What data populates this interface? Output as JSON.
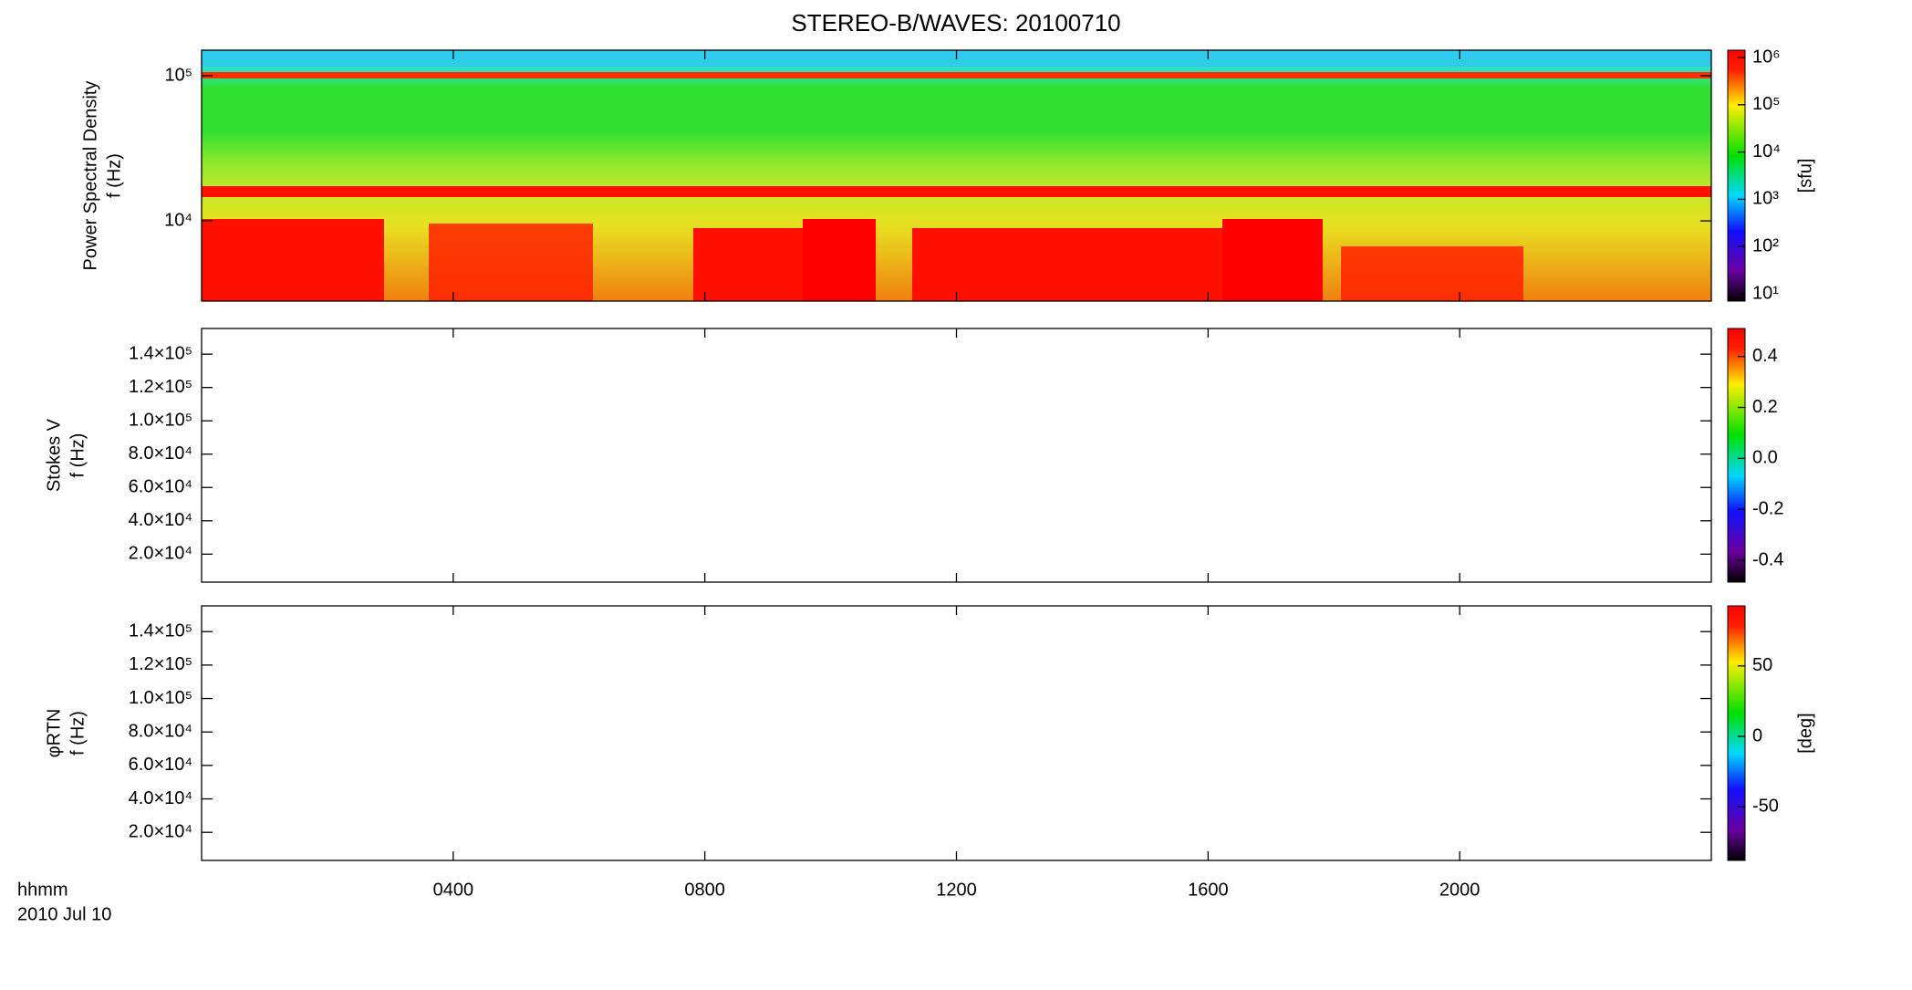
{
  "title": "STEREO-B/WAVES: 20100710",
  "x_axis": {
    "label": "hhmm",
    "date": "2010 Jul 10",
    "xlim": [
      0,
      24
    ],
    "xticks": [
      {
        "value": 4,
        "label": "0400"
      },
      {
        "value": 8,
        "label": "0800"
      },
      {
        "value": 12,
        "label": "1200"
      },
      {
        "value": 16,
        "label": "1600"
      },
      {
        "value": 20,
        "label": "2000"
      }
    ]
  },
  "chart_data": [
    {
      "type": "spectrogram",
      "ylabel": [
        "Power Spectral Density",
        "f (Hz)"
      ],
      "log_y": true,
      "ylim": [
        2800,
        150000
      ],
      "yticks": [
        {
          "value": 10000,
          "label": "10⁴"
        },
        {
          "value": 100000,
          "label": "10⁵"
        }
      ],
      "colorbar": {
        "label": "[sfu]",
        "log": true,
        "lim": [
          7,
          1430000
        ],
        "ticks": [
          {
            "value": 10,
            "label": "10¹"
          },
          {
            "value": 100,
            "label": "10²"
          },
          {
            "value": 1000,
            "label": "10³"
          },
          {
            "value": 10000,
            "label": "10⁴"
          },
          {
            "value": 100000,
            "label": "10⁵"
          },
          {
            "value": 1000000,
            "label": "10⁶"
          }
        ]
      }
    },
    {
      "type": "spectrogram",
      "ylabel": [
        "Stokes V",
        "f (Hz)"
      ],
      "log_y": false,
      "ylim": [
        3200,
        155400
      ],
      "yticks": [
        {
          "value": 20000,
          "label": "2.0×10⁴"
        },
        {
          "value": 40000,
          "label": "4.0×10⁴"
        },
        {
          "value": 60000,
          "label": "6.0×10⁴"
        },
        {
          "value": 80000,
          "label": "8.0×10⁴"
        },
        {
          "value": 100000,
          "label": "1.0×10⁵"
        },
        {
          "value": 120000,
          "label": "1.2×10⁵"
        },
        {
          "value": 140000,
          "label": "1.4×10⁵"
        }
      ],
      "colorbar": {
        "log": false,
        "lim": [
          -0.486,
          0.51
        ],
        "ticks": [
          -0.4,
          -0.2,
          {
            "value": 0,
            "label": "0.0"
          },
          0.2,
          0.4
        ]
      }
    },
    {
      "type": "spectrogram",
      "ylabel": [
        "φRTN",
        "f (Hz)"
      ],
      "log_y": false,
      "ylim": [
        3200,
        155400
      ],
      "yticks": [
        {
          "value": 20000,
          "label": "2.0×10⁴"
        },
        {
          "value": 40000,
          "label": "4.0×10⁴"
        },
        {
          "value": 60000,
          "label": "6.0×10⁴"
        },
        {
          "value": 80000,
          "label": "8.0×10⁴"
        },
        {
          "value": 100000,
          "label": "1.0×10⁵"
        },
        {
          "value": 120000,
          "label": "1.2×10⁵"
        },
        {
          "value": 140000,
          "label": "1.4×10⁵"
        }
      ],
      "colorbar": {
        "label": "[deg]",
        "log": false,
        "lim": [
          -88,
          92.6
        ],
        "ticks": [
          -50,
          0,
          50
        ]
      }
    }
  ]
}
